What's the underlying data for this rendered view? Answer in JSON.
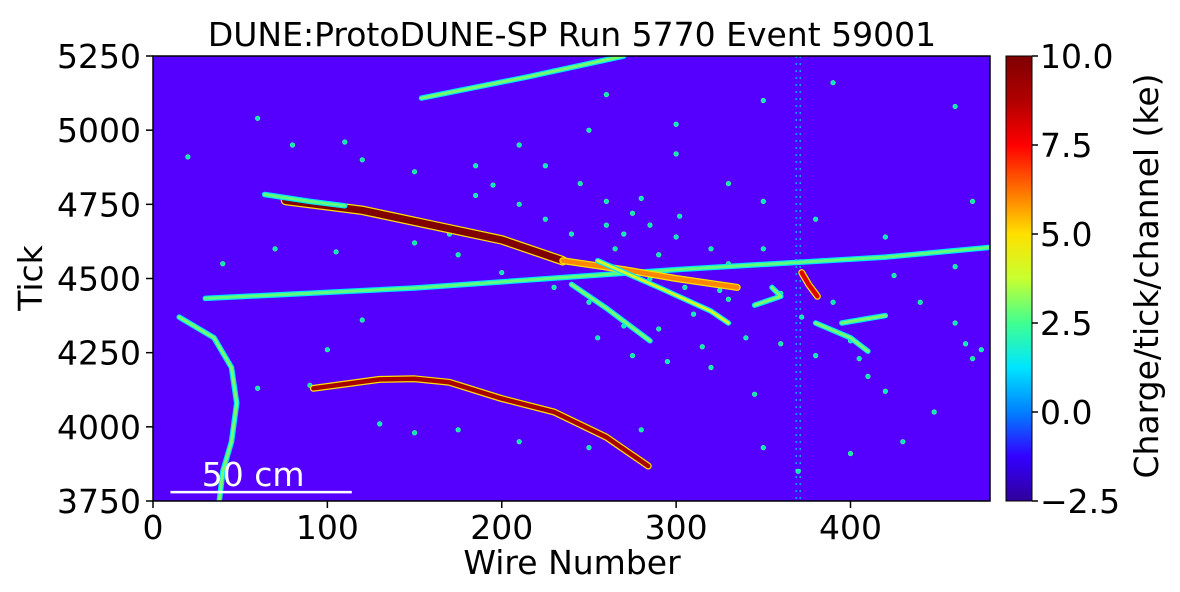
{
  "chart_data": {
    "type": "heatmap",
    "title": "DUNE:ProtoDUNE-SP Run 5770 Event 59001",
    "xlabel": "Wire Number",
    "ylabel": "Tick",
    "xlim": [
      0,
      480
    ],
    "ylim": [
      3750,
      5250
    ],
    "xticks": [
      0,
      100,
      200,
      300,
      400
    ],
    "yticks": [
      3750,
      4000,
      4250,
      4500,
      4750,
      5000,
      5250
    ],
    "colorbar": {
      "label": "Charge/tick/channel (ke)",
      "range": [
        -2.5,
        10.0
      ],
      "ticks": [
        "10.0",
        "7.5",
        "5.0",
        "2.5",
        "0.0",
        "−2.5"
      ],
      "colormap": "jet",
      "colors": [
        "#30009a",
        "#3300ff",
        "#0080ff",
        "#00e5ff",
        "#40ff90",
        "#c8ff30",
        "#ffe000",
        "#ff7000",
        "#ff0000",
        "#b00000",
        "#800000"
      ]
    },
    "background_color": "#5500ff",
    "scale_bar": {
      "label": "50 cm",
      "x_start": 10,
      "x_end": 114,
      "y": 3780
    },
    "dead_channel_column_x": 370,
    "tracks": [
      {
        "name": "track-top-right",
        "charge": 3.0,
        "points": [
          [
            154,
            5108
          ],
          [
            215,
            5180
          ],
          [
            270,
            5250
          ]
        ]
      },
      {
        "name": "track-crossing",
        "charge": 2.8,
        "points": [
          [
            30,
            4433
          ],
          [
            150,
            4468
          ],
          [
            300,
            4530
          ],
          [
            420,
            4572
          ],
          [
            480,
            4605
          ]
        ]
      },
      {
        "name": "track-shower-core",
        "charge": 10.0,
        "points": [
          [
            76,
            4763
          ],
          [
            120,
            4730
          ],
          [
            160,
            4680
          ],
          [
            200,
            4630
          ],
          [
            235,
            4560
          ]
        ]
      },
      {
        "name": "track-shower-branch",
        "charge": 6.0,
        "points": [
          [
            235,
            4560
          ],
          [
            270,
            4530
          ],
          [
            300,
            4500
          ],
          [
            335,
            4470
          ]
        ]
      },
      {
        "name": "track-lower-long",
        "charge": 9.0,
        "points": [
          [
            92,
            4130
          ],
          [
            130,
            4160
          ],
          [
            150,
            4162
          ],
          [
            170,
            4150
          ],
          [
            200,
            4095
          ],
          [
            230,
            4050
          ],
          [
            260,
            3965
          ],
          [
            284,
            3868
          ]
        ]
      },
      {
        "name": "track-left-curve",
        "charge": 3.0,
        "points": [
          [
            15,
            4370
          ],
          [
            35,
            4300
          ],
          [
            45,
            4200
          ],
          [
            48,
            4080
          ],
          [
            45,
            3950
          ],
          [
            40,
            3850
          ],
          [
            38,
            3750
          ]
        ]
      },
      {
        "name": "track-right-short",
        "charge": 8.0,
        "points": [
          [
            372,
            4520
          ],
          [
            376,
            4480
          ],
          [
            381,
            4440
          ]
        ]
      },
      {
        "name": "track-right-curl",
        "charge": 3.0,
        "points": [
          [
            355,
            4470
          ],
          [
            360,
            4440
          ],
          [
            345,
            4410
          ]
        ]
      },
      {
        "name": "track-left-start",
        "charge": 2.8,
        "points": [
          [
            64,
            4783
          ],
          [
            90,
            4760
          ],
          [
            110,
            4745
          ]
        ]
      },
      {
        "name": "track-shower-low",
        "charge": 3.0,
        "points": [
          [
            240,
            4480
          ],
          [
            260,
            4400
          ],
          [
            285,
            4290
          ]
        ]
      },
      {
        "name": "track-shower-mid",
        "charge": 4.0,
        "points": [
          [
            255,
            4560
          ],
          [
            290,
            4470
          ],
          [
            320,
            4390
          ],
          [
            330,
            4350
          ]
        ]
      },
      {
        "name": "track-right-low",
        "charge": 3.0,
        "points": [
          [
            380,
            4350
          ],
          [
            400,
            4300
          ],
          [
            410,
            4255
          ]
        ]
      },
      {
        "name": "track-far-right",
        "charge": 3.0,
        "points": [
          [
            395,
            4350
          ],
          [
            420,
            4375
          ]
        ]
      }
    ],
    "blobs": [
      [
        185,
        4780
      ],
      [
        195,
        4815
      ],
      [
        225,
        4700
      ],
      [
        260,
        4680
      ],
      [
        275,
        4720
      ],
      [
        300,
        4640
      ],
      [
        320,
        4600
      ],
      [
        350,
        4600
      ],
      [
        210,
        4750
      ],
      [
        240,
        4650
      ],
      [
        290,
        4580
      ],
      [
        330,
        4430
      ],
      [
        310,
        4380
      ],
      [
        290,
        4330
      ],
      [
        270,
        4340
      ],
      [
        250,
        4420
      ],
      [
        230,
        4470
      ],
      [
        200,
        4520
      ],
      [
        175,
        4580
      ],
      [
        170,
        4650
      ],
      [
        150,
        4620
      ],
      [
        140,
        4700
      ],
      [
        260,
        4760
      ],
      [
        280,
        4770
      ],
      [
        302,
        4710
      ],
      [
        330,
        4550
      ],
      [
        360,
        4450
      ],
      [
        372,
        4370
      ],
      [
        390,
        4420
      ],
      [
        400,
        4290
      ],
      [
        405,
        4230
      ],
      [
        410,
        4170
      ],
      [
        420,
        4120
      ],
      [
        380,
        4240
      ],
      [
        360,
        4280
      ],
      [
        340,
        4300
      ],
      [
        315,
        4270
      ],
      [
        295,
        4220
      ],
      [
        275,
        4240
      ],
      [
        255,
        4300
      ],
      [
        120,
        4360
      ],
      [
        100,
        4260
      ],
      [
        90,
        4140
      ],
      [
        60,
        4130
      ],
      [
        130,
        4010
      ],
      [
        150,
        3980
      ],
      [
        175,
        3990
      ],
      [
        210,
        3950
      ],
      [
        250,
        3930
      ],
      [
        280,
        3990
      ],
      [
        320,
        4200
      ],
      [
        345,
        4110
      ],
      [
        350,
        3930
      ],
      [
        370,
        3850
      ],
      [
        400,
        3910
      ],
      [
        430,
        3950
      ],
      [
        448,
        4050
      ],
      [
        466,
        4280
      ],
      [
        475,
        4260
      ],
      [
        470,
        4230
      ],
      [
        460,
        4350
      ],
      [
        440,
        4420
      ],
      [
        425,
        4510
      ],
      [
        460,
        4540
      ],
      [
        420,
        4640
      ],
      [
        380,
        4700
      ],
      [
        350,
        4760
      ],
      [
        330,
        4820
      ],
      [
        300,
        4920
      ],
      [
        250,
        5000
      ],
      [
        210,
        4950
      ],
      [
        185,
        4880
      ],
      [
        150,
        4860
      ],
      [
        120,
        4900
      ],
      [
        110,
        4960
      ],
      [
        80,
        4950
      ],
      [
        60,
        5040
      ],
      [
        20,
        4910
      ],
      [
        230,
        5200
      ],
      [
        260,
        5120
      ],
      [
        300,
        5020
      ],
      [
        350,
        5100
      ],
      [
        390,
        5160
      ],
      [
        460,
        5080
      ],
      [
        470,
        4760
      ],
      [
        40,
        4550
      ],
      [
        70,
        4600
      ],
      [
        105,
        4590
      ],
      [
        225,
        4880
      ],
      [
        245,
        4820
      ],
      [
        265,
        4600
      ],
      [
        285,
        4500
      ],
      [
        305,
        4470
      ],
      [
        325,
        4460
      ],
      [
        285,
        4680
      ],
      [
        270,
        4650
      ]
    ]
  }
}
